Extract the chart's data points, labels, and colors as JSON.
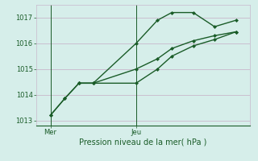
{
  "title": "",
  "xlabel": "Pression niveau de la mer( hPa )",
  "bg_color": "#d6eeea",
  "grid_color": "#c8b8cc",
  "line_color": "#1a5c28",
  "ylim": [
    1012.8,
    1017.5
  ],
  "yticks": [
    1013,
    1014,
    1015,
    1016,
    1017
  ],
  "xtick_labels": [
    "Mer",
    "Jeu"
  ],
  "xtick_positions": [
    0.5,
    3.5
  ],
  "vline_x": [
    0.5,
    3.5
  ],
  "line1_x": [
    0.5,
    1.0,
    1.5,
    2.0,
    3.5,
    4.25,
    4.75,
    5.5,
    6.25,
    7.0
  ],
  "line1_y": [
    1013.2,
    1013.85,
    1014.45,
    1014.45,
    1016.0,
    1016.9,
    1017.2,
    1017.2,
    1016.65,
    1016.9
  ],
  "line2_x": [
    0.5,
    1.0,
    1.5,
    2.0,
    3.5,
    4.25,
    4.75,
    5.5,
    6.25,
    7.0
  ],
  "line2_y": [
    1013.2,
    1013.85,
    1014.45,
    1014.45,
    1014.45,
    1015.0,
    1015.5,
    1015.9,
    1016.15,
    1016.45
  ],
  "line3_x": [
    1.5,
    2.0,
    3.5,
    4.25,
    4.75,
    5.5,
    6.25,
    7.0
  ],
  "line3_y": [
    1014.45,
    1014.45,
    1015.0,
    1015.4,
    1015.8,
    1016.1,
    1016.3,
    1016.45
  ],
  "marker_size": 2.5,
  "linewidth": 1.0,
  "tick_fontsize": 6,
  "xlabel_fontsize": 7
}
